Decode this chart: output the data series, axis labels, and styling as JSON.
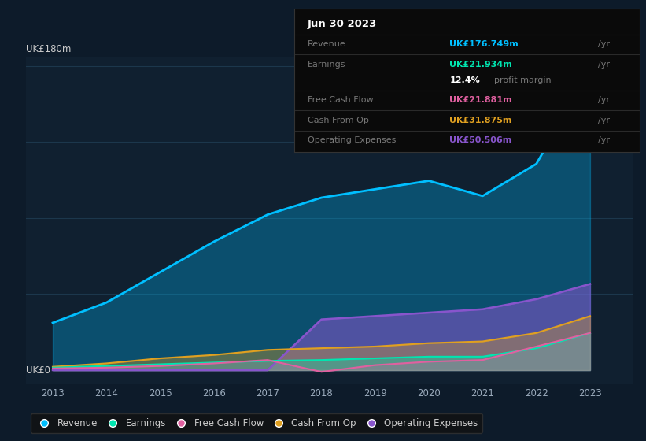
{
  "background_color": "#0d1b2a",
  "plot_bg_color": "#102030",
  "years": [
    2013,
    2014,
    2015,
    2016,
    2017,
    2018,
    2019,
    2020,
    2021,
    2022,
    2023
  ],
  "revenue": [
    28,
    40,
    58,
    76,
    92,
    102,
    107,
    112,
    103,
    122,
    177
  ],
  "earnings": [
    1.5,
    2.5,
    3.5,
    4.5,
    5.5,
    6,
    7,
    8,
    8,
    13,
    22
  ],
  "free_cash_flow": [
    1,
    1.5,
    2.5,
    4,
    6,
    -1,
    3,
    5,
    6,
    14,
    22
  ],
  "cash_from_op": [
    2,
    4,
    7,
    9,
    12,
    13,
    14,
    16,
    17,
    22,
    32
  ],
  "operating_expenses": [
    0,
    0,
    0,
    0,
    0,
    30,
    32,
    34,
    36,
    42,
    51
  ],
  "revenue_color": "#00bfff",
  "earnings_color": "#00e5b0",
  "free_cash_flow_color": "#e060a0",
  "cash_from_op_color": "#e0a020",
  "operating_expenses_color": "#8855cc",
  "info_title": "Jun 30 2023",
  "info_revenue_val": "UK£176.749m",
  "info_earnings_val": "UK£​21.934m",
  "info_margin": "12.4%",
  "info_fcf_val": "UK£​21.881m",
  "info_cfo_val": "UK£​31.875m",
  "info_opex_val": "UK£​50.506m",
  "legend_labels": [
    "Revenue",
    "Earnings",
    "Free Cash Flow",
    "Cash From Op",
    "Operating Expenses"
  ]
}
